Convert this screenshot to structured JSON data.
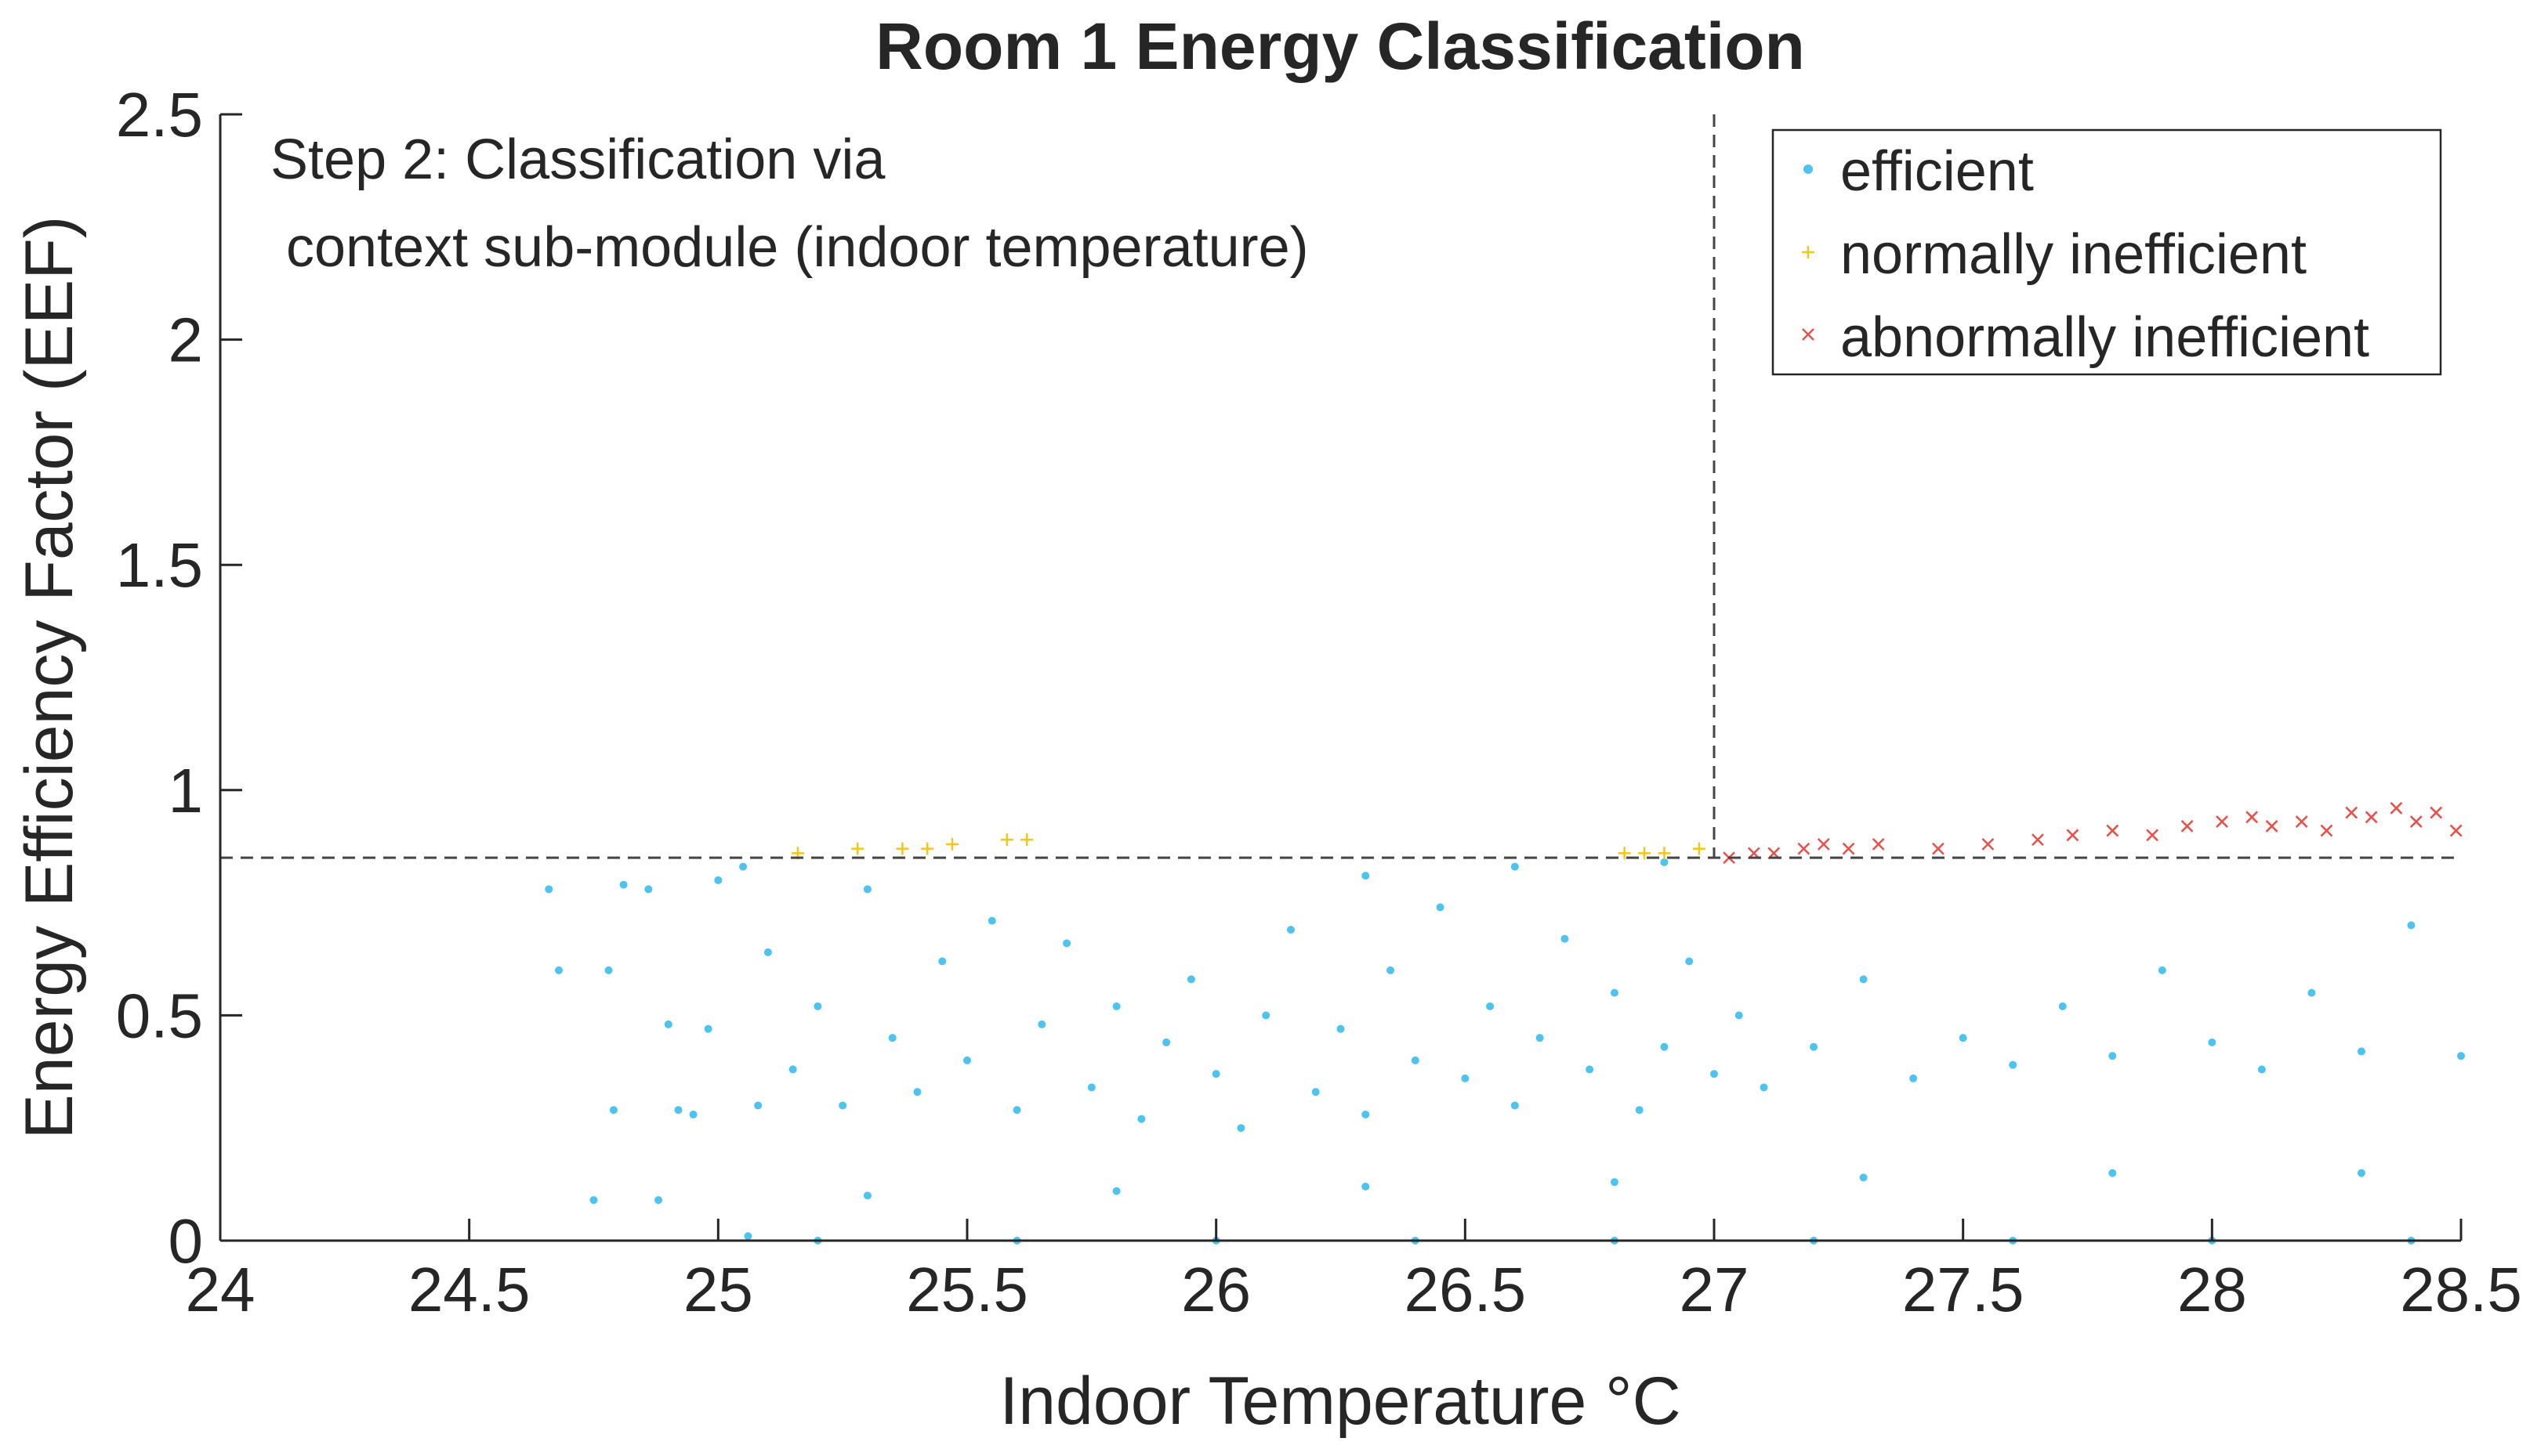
{
  "chart_data": {
    "type": "scatter",
    "title": "Room 1 Energy Classification",
    "xlabel": "Indoor Temperature °C",
    "ylabel": "Energy Efficiency Factor (EEF)",
    "xlim": [
      24,
      28.5
    ],
    "ylim": [
      0,
      2.5
    ],
    "x_ticks": [
      "24",
      "24.5",
      "25",
      "25.5",
      "26",
      "26.5",
      "27",
      "27.5",
      "28",
      "28.5"
    ],
    "y_ticks": [
      "0",
      "0.5",
      "1",
      "1.5",
      "2",
      "2.5"
    ],
    "annotation": [
      "Step 2: Classification via",
      " context sub-module (indoor temperature)"
    ],
    "thresholds": {
      "x": 27,
      "y": 0.85
    },
    "legend_position": "top-right",
    "grid": false,
    "colors": {
      "efficient": "#4dc3f0",
      "normally_inefficient": "#f5c518",
      "abnormally_inefficient": "#e8504a",
      "threshold": "#444444",
      "axis": "#262626"
    },
    "series": [
      {
        "name": "efficient",
        "marker": "dot",
        "points": [
          [
            24.66,
            0.78
          ],
          [
            24.68,
            0.6
          ],
          [
            24.75,
            0.09
          ],
          [
            24.78,
            0.6
          ],
          [
            24.79,
            0.29
          ],
          [
            24.81,
            0.79
          ],
          [
            24.86,
            0.78
          ],
          [
            24.88,
            0.09
          ],
          [
            24.9,
            0.48
          ],
          [
            24.92,
            0.29
          ],
          [
            24.95,
            0.28
          ],
          [
            24.98,
            0.47
          ],
          [
            25.0,
            0.8
          ],
          [
            25.05,
            0.83
          ],
          [
            25.06,
            0.01
          ],
          [
            25.08,
            0.3
          ],
          [
            25.1,
            0.64
          ],
          [
            25.15,
            0.38
          ],
          [
            25.2,
            0.52
          ],
          [
            25.25,
            0.3
          ],
          [
            25.3,
            0.78
          ],
          [
            25.35,
            0.45
          ],
          [
            25.4,
            0.33
          ],
          [
            25.45,
            0.62
          ],
          [
            25.5,
            0.4
          ],
          [
            25.55,
            0.71
          ],
          [
            25.6,
            0.29
          ],
          [
            25.65,
            0.48
          ],
          [
            25.7,
            0.66
          ],
          [
            25.75,
            0.34
          ],
          [
            25.8,
            0.52
          ],
          [
            25.85,
            0.27
          ],
          [
            25.9,
            0.44
          ],
          [
            25.95,
            0.58
          ],
          [
            26.0,
            0.37
          ],
          [
            26.05,
            0.25
          ],
          [
            26.1,
            0.5
          ],
          [
            26.15,
            0.69
          ],
          [
            26.2,
            0.33
          ],
          [
            26.25,
            0.47
          ],
          [
            26.3,
            0.28
          ],
          [
            26.35,
            0.6
          ],
          [
            26.4,
            0.4
          ],
          [
            26.45,
            0.74
          ],
          [
            26.5,
            0.36
          ],
          [
            26.55,
            0.52
          ],
          [
            26.6,
            0.3
          ],
          [
            26.65,
            0.45
          ],
          [
            26.7,
            0.67
          ],
          [
            26.75,
            0.38
          ],
          [
            26.8,
            0.55
          ],
          [
            26.85,
            0.29
          ],
          [
            26.9,
            0.43
          ],
          [
            26.95,
            0.62
          ],
          [
            27.0,
            0.37
          ],
          [
            27.05,
            0.5
          ],
          [
            27.1,
            0.34
          ],
          [
            27.2,
            0.43
          ],
          [
            27.3,
            0.58
          ],
          [
            27.4,
            0.36
          ],
          [
            27.5,
            0.45
          ],
          [
            27.6,
            0.39
          ],
          [
            27.7,
            0.52
          ],
          [
            27.8,
            0.41
          ],
          [
            27.9,
            0.6
          ],
          [
            28.0,
            0.44
          ],
          [
            28.1,
            0.38
          ],
          [
            28.2,
            0.55
          ],
          [
            28.3,
            0.42
          ],
          [
            28.4,
            0.7
          ],
          [
            28.5,
            0.41
          ],
          [
            25.3,
            0.1
          ],
          [
            25.8,
            0.11
          ],
          [
            26.3,
            0.12
          ],
          [
            26.8,
            0.13
          ],
          [
            27.3,
            0.14
          ],
          [
            27.8,
            0.15
          ],
          [
            28.3,
            0.15
          ],
          [
            25.2,
            0.0
          ],
          [
            25.6,
            0.0
          ],
          [
            26.0,
            0.0
          ],
          [
            26.4,
            0.0
          ],
          [
            26.8,
            0.0
          ],
          [
            27.2,
            0.0
          ],
          [
            27.6,
            0.0
          ],
          [
            28.0,
            0.0
          ],
          [
            28.4,
            0.0
          ],
          [
            26.3,
            0.81
          ],
          [
            26.6,
            0.83
          ],
          [
            26.9,
            0.84
          ]
        ]
      },
      {
        "name": "normally inefficient",
        "marker": "plus",
        "points": [
          [
            25.16,
            0.86
          ],
          [
            25.28,
            0.87
          ],
          [
            25.37,
            0.87
          ],
          [
            25.42,
            0.87
          ],
          [
            25.47,
            0.88
          ],
          [
            25.58,
            0.89
          ],
          [
            25.62,
            0.89
          ],
          [
            26.82,
            0.86
          ],
          [
            26.86,
            0.86
          ],
          [
            26.9,
            0.86
          ],
          [
            26.97,
            0.87
          ]
        ]
      },
      {
        "name": "abnormally inefficient",
        "marker": "x",
        "points": [
          [
            27.03,
            0.85
          ],
          [
            27.08,
            0.86
          ],
          [
            27.12,
            0.86
          ],
          [
            27.18,
            0.87
          ],
          [
            27.22,
            0.88
          ],
          [
            27.27,
            0.87
          ],
          [
            27.33,
            0.88
          ],
          [
            27.45,
            0.87
          ],
          [
            27.55,
            0.88
          ],
          [
            27.65,
            0.89
          ],
          [
            27.72,
            0.9
          ],
          [
            27.8,
            0.91
          ],
          [
            27.88,
            0.9
          ],
          [
            27.95,
            0.92
          ],
          [
            28.02,
            0.93
          ],
          [
            28.08,
            0.94
          ],
          [
            28.12,
            0.92
          ],
          [
            28.18,
            0.93
          ],
          [
            28.23,
            0.91
          ],
          [
            28.28,
            0.95
          ],
          [
            28.32,
            0.94
          ],
          [
            28.37,
            0.96
          ],
          [
            28.41,
            0.93
          ],
          [
            28.45,
            0.95
          ],
          [
            28.49,
            0.91
          ]
        ]
      }
    ]
  }
}
